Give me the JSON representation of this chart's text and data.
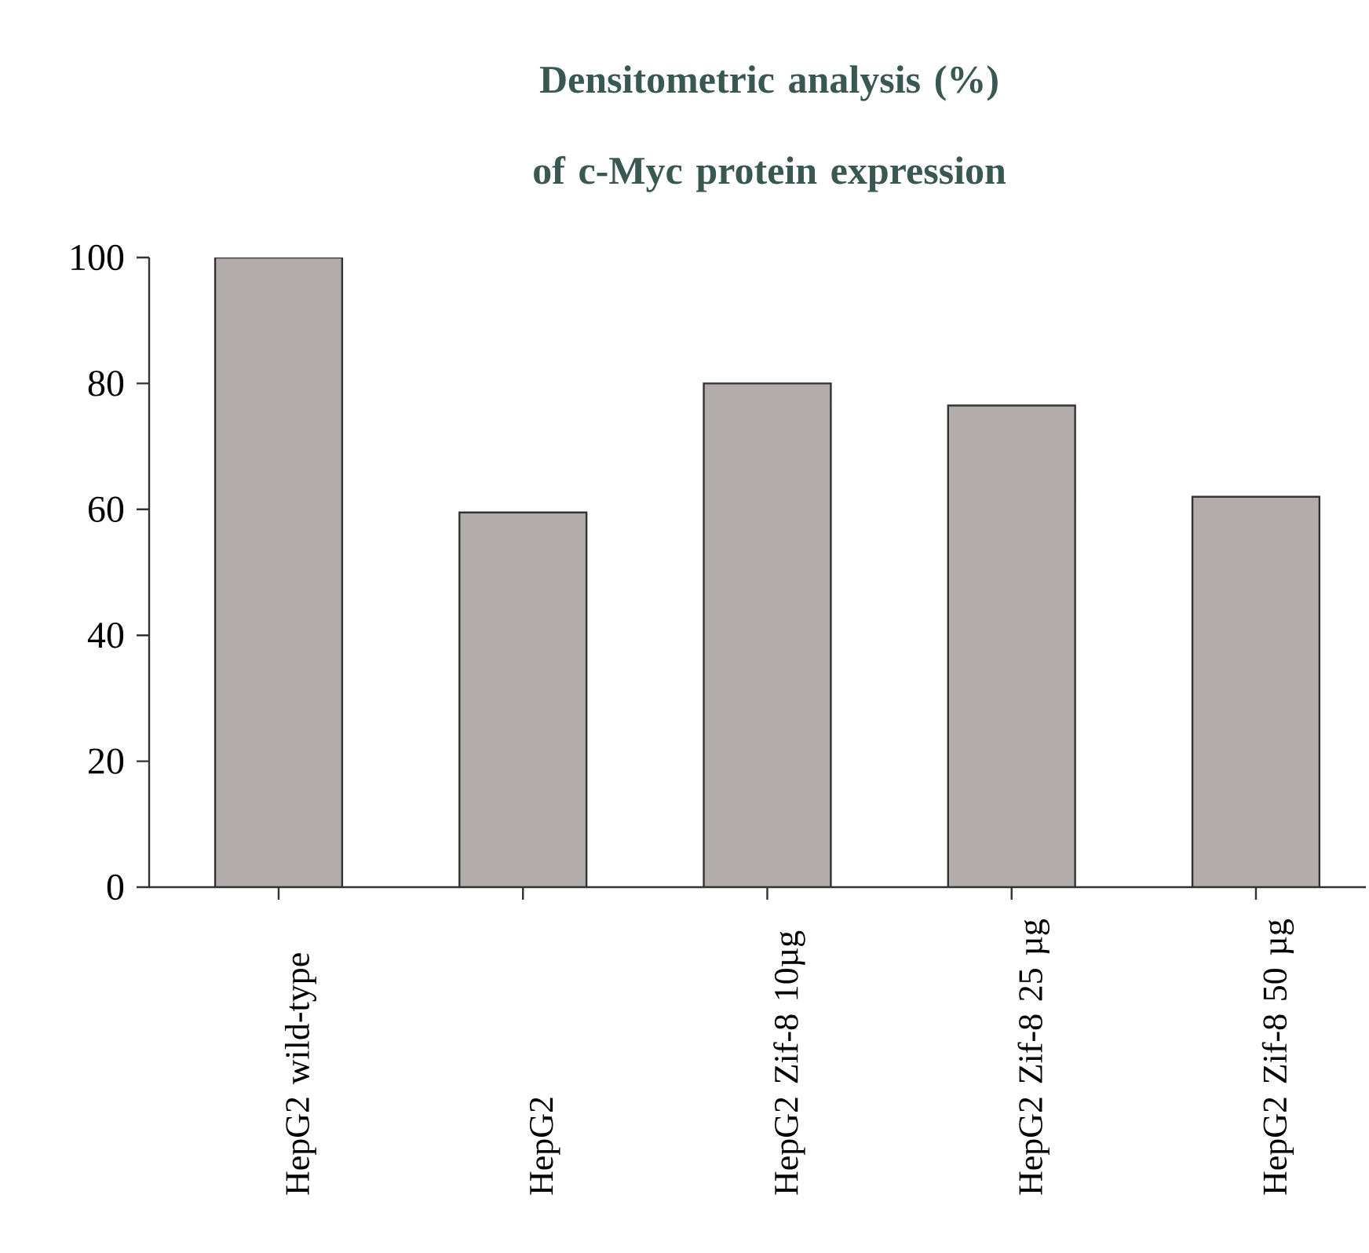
{
  "chart_data": {
    "type": "bar",
    "title": "Densitometric analysis (%) of c-Myc protein expression",
    "categories": [
      "HepG2 wild-type",
      "HepG2",
      "HepG2 Zif-8 10µg",
      "HepG2 Zif-8 25 µg",
      "HepG2 Zif-8 50 µg"
    ],
    "values": [
      100,
      59.5,
      80,
      76.5,
      62
    ],
    "color": "#b2adab",
    "ylim": [
      0,
      100
    ],
    "yticks": [
      0,
      20,
      40,
      60,
      80,
      100
    ]
  }
}
